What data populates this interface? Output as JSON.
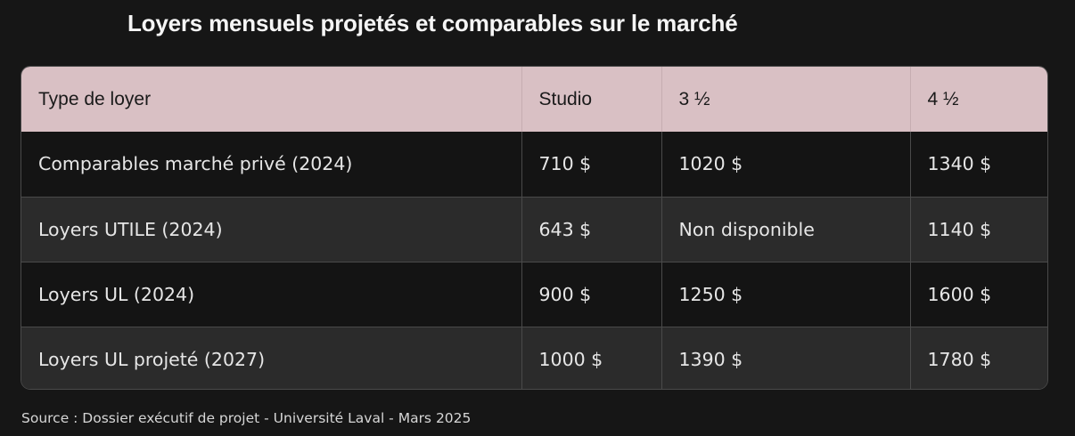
{
  "title": "Loyers mensuels projetés et comparables sur le marché",
  "table": {
    "headers": [
      "Type de loyer",
      "Studio",
      "3 ½",
      "4 ½"
    ],
    "rows": [
      [
        "Comparables marché privé (2024)",
        "710 $",
        "1020 $",
        "1340 $"
      ],
      [
        "Loyers UTILE (2024)",
        "643 $",
        "Non disponible",
        "1140 $"
      ],
      [
        "Loyers UL (2024)",
        "900 $",
        "1250 $",
        "1600 $"
      ],
      [
        "Loyers UL projeté (2027)",
        "1000 $",
        "1390 $",
        "1780 $"
      ]
    ]
  },
  "source": "Source : Dossier exécutif de projet - Université Laval - Mars 2025",
  "colors": {
    "background": "#161616",
    "header_bg": "#d9c0c4",
    "row_odd": "#141414",
    "row_even": "#2b2b2b",
    "border": "#4a4a4a"
  }
}
